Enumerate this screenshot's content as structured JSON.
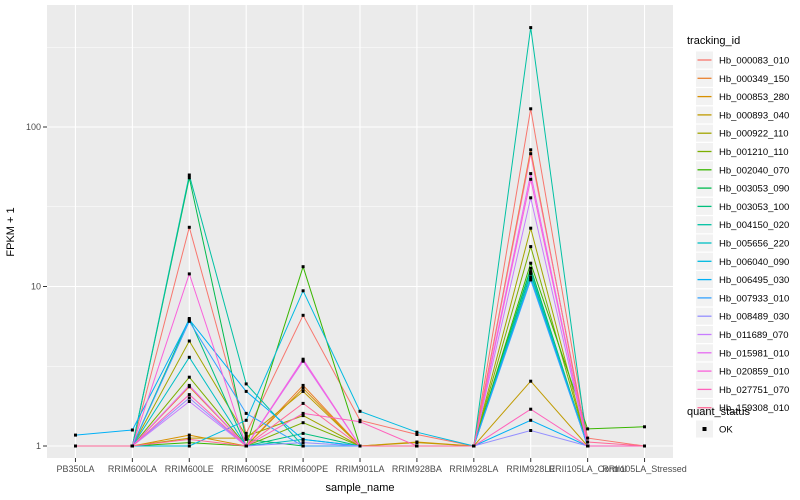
{
  "figure": {
    "background": "#FFFFFF",
    "panel_background": "#EBEBEB",
    "gridline_color": "#FFFFFF",
    "tick_label_color": "#4D4D4D",
    "tick_mark_color": "#333333",
    "point_color": "#000000"
  },
  "legend": {
    "tracking_title": "tracking_id",
    "quant_title": "quant_status",
    "quant_status_label": "OK",
    "key_fill": "#F2F2F2"
  },
  "chart_data": {
    "type": "line",
    "title": "",
    "xlabel": "sample_name",
    "ylabel": "FPKM + 1",
    "y_scale": "log10",
    "ylim": [
      0.84,
      575
    ],
    "y_ticks": [
      1,
      10,
      100
    ],
    "y_tick_labels": [
      "1",
      "10",
      "100"
    ],
    "y_minor_ticks": [
      3.162,
      31.62,
      316.2
    ],
    "grid": true,
    "legend_position": "right",
    "marker": "black-square",
    "categories": [
      "PB350LA",
      "RRIM600LA",
      "RRIM600LE",
      "RRIM600SE",
      "RRIM600PE",
      "RRIM901LA",
      "RRIM928BA",
      "RRIM928LA",
      "RRIM928LE",
      "RRII105LA_Control",
      "RRII105LA_Stressed"
    ],
    "series": [
      {
        "name": "Hb_000083_010",
        "color": "#F8766D",
        "values": [
          1,
          1,
          23.5,
          1.2,
          6.6,
          1.45,
          1.18,
          1,
          130,
          1.12,
          1
        ]
      },
      {
        "name": "Hb_000349_150",
        "color": "#EA8331",
        "values": [
          1,
          1,
          2.35,
          1,
          2.4,
          1,
          1,
          1,
          72,
          1,
          1
        ]
      },
      {
        "name": "Hb_000853_280",
        "color": "#D89000",
        "values": [
          1,
          1,
          1.17,
          1,
          2.3,
          1,
          1.06,
          1,
          12.2,
          1,
          1
        ]
      },
      {
        "name": "Hb_000893_040",
        "color": "#C09B00",
        "values": [
          1,
          1,
          1.12,
          1.12,
          2.2,
          1,
          1.05,
          1,
          2.55,
          1,
          1
        ]
      },
      {
        "name": "Hb_000922_110",
        "color": "#A3A500",
        "values": [
          1,
          1,
          4.55,
          1.15,
          1.55,
          1,
          1,
          1,
          23.2,
          1,
          1
        ]
      },
      {
        "name": "Hb_001210_110",
        "color": "#7CAE00",
        "values": [
          1,
          1,
          2.7,
          1,
          1.4,
          1,
          1,
          1,
          17.8,
          1,
          1
        ]
      },
      {
        "name": "Hb_002040_070",
        "color": "#39B600",
        "values": [
          1,
          1,
          1.05,
          1,
          13.3,
          1,
          1,
          1,
          14,
          1.28,
          1.32
        ]
      },
      {
        "name": "Hb_003053_090",
        "color": "#00BB4E",
        "values": [
          1,
          1,
          48,
          1.1,
          1,
          1,
          1,
          1,
          13,
          1,
          1
        ]
      },
      {
        "name": "Hb_003053_100",
        "color": "#00BF7D",
        "values": [
          1,
          1,
          6.3,
          1,
          1.2,
          1,
          1,
          1,
          12,
          1,
          1
        ]
      },
      {
        "name": "Hb_004150_020",
        "color": "#00C1A3",
        "values": [
          1,
          1,
          50,
          2.45,
          1,
          1,
          1,
          1,
          420,
          1,
          1
        ]
      },
      {
        "name": "Hb_005656_220",
        "color": "#00BFC4",
        "values": [
          1,
          1,
          3.6,
          1,
          1.1,
          1,
          1,
          1,
          12.4,
          1,
          1
        ]
      },
      {
        "name": "Hb_006040_090",
        "color": "#00BAE0",
        "values": [
          1,
          1,
          1,
          1.45,
          9.4,
          1.65,
          1.22,
          1,
          11.4,
          1,
          1
        ]
      },
      {
        "name": "Hb_006495_030",
        "color": "#00B0F6",
        "values": [
          1.17,
          1.26,
          6.2,
          2.2,
          1.1,
          1,
          1,
          1,
          1.45,
          1,
          1
        ]
      },
      {
        "name": "Hb_007933_010",
        "color": "#35A2FF",
        "values": [
          1,
          1,
          6.05,
          1.6,
          1,
          1,
          1,
          1,
          11,
          1,
          1
        ]
      },
      {
        "name": "Hb_008489_030",
        "color": "#9590FF",
        "values": [
          1,
          1,
          2.0,
          1,
          1.05,
          1,
          1,
          1,
          1.25,
          1,
          1
        ]
      },
      {
        "name": "Hb_011689_070",
        "color": "#C77CFF",
        "values": [
          1,
          1,
          1.9,
          1,
          3.4,
          1,
          1,
          1,
          36,
          1,
          1
        ]
      },
      {
        "name": "Hb_015981_010",
        "color": "#E76BF3",
        "values": [
          1,
          1,
          2.4,
          1,
          3.5,
          1,
          1,
          1,
          51,
          1,
          1
        ]
      },
      {
        "name": "Hb_020859_010",
        "color": "#FA62DB",
        "values": [
          1,
          1,
          12,
          1,
          3.45,
          1,
          1,
          1,
          47,
          1,
          1
        ]
      },
      {
        "name": "Hb_027751_070",
        "color": "#FF62BC",
        "values": [
          1,
          1,
          2.1,
          1,
          1.6,
          1.42,
          1,
          1,
          1.7,
          1,
          1
        ]
      },
      {
        "name": "Hb_159308_010",
        "color": "#FF6A98",
        "values": [
          1,
          1,
          1.1,
          1,
          1.85,
          1,
          1,
          1,
          68,
          1.06,
          1
        ]
      }
    ]
  }
}
